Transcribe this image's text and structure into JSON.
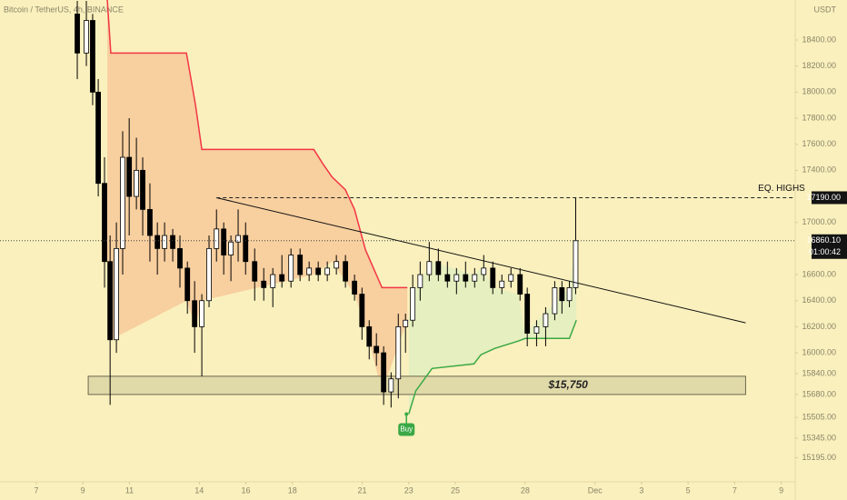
{
  "chart_data": {
    "type": "candlestick",
    "title": "Bitcoin / TetherUS, 4h, BINANCE",
    "currency": "USDT",
    "xlim": [
      5.44,
      39.6
    ],
    "xticks": [
      7,
      9,
      11,
      14,
      16,
      18,
      21,
      23,
      25,
      28,
      {
        "value": 31,
        "label": "Dec"
      },
      3.0,
      5.0,
      7.0,
      9.0
    ],
    "ylim": [
      15010,
      18707
    ],
    "yticks": [
      {
        "value": 15195,
        "label": "15195.00"
      },
      {
        "value": 15345,
        "label": "15345.00"
      },
      {
        "value": 15505,
        "label": "15505.00"
      },
      {
        "value": 15680,
        "label": "15680.00"
      },
      {
        "value": 15840,
        "label": "15840.00"
      },
      {
        "value": 16000,
        "label": "16000.00"
      },
      {
        "value": 16200,
        "label": "16200.00"
      },
      {
        "value": 16400,
        "label": "16400.00"
      },
      {
        "value": 16600,
        "label": "16600.00"
      },
      {
        "value": 17000,
        "label": "17000.00"
      },
      {
        "value": 17400,
        "label": "17400.00"
      },
      {
        "value": 17600,
        "label": "17600.00"
      },
      {
        "value": 17800,
        "label": "17800.00"
      },
      {
        "value": 18000,
        "label": "18000.00"
      },
      {
        "value": 18200,
        "label": "18200.00"
      },
      {
        "value": 18400,
        "label": "18400.00"
      }
    ],
    "up_color": "#ffffff",
    "down_color": "#000000",
    "x": [
      8.76,
      9.15,
      9.42,
      9.66,
      9.93,
      10.17,
      10.44,
      10.71,
      10.99,
      11.3,
      11.57,
      11.88,
      12.2,
      12.51,
      12.86,
      13.17,
      13.49,
      13.8,
      14.11,
      14.42,
      14.74,
      15.05,
      15.36,
      15.67,
      15.99,
      16.38,
      16.77,
      17.16,
      17.55,
      17.94,
      18.33,
      18.72,
      19.11,
      19.5,
      19.89,
      20.28,
      20.67,
      20.99,
      21.3,
      21.61,
      21.92,
      22.24,
      22.55,
      22.86,
      23.17,
      23.49,
      23.88,
      24.27,
      24.66,
      25.05,
      25.44,
      25.83,
      26.22,
      26.61,
      27.0,
      27.39,
      27.78,
      28.09,
      28.49,
      28.88,
      29.27,
      29.58,
      29.9,
      30.17
    ],
    "open": [
      18600,
      18300,
      18550,
      18000,
      17300,
      16700,
      16100,
      16800,
      17500,
      17200,
      17400,
      17100,
      16900,
      16800,
      16900,
      16800,
      16650,
      16400,
      16200,
      16400,
      16800,
      16950,
      16750,
      16850,
      16900,
      16700,
      16550,
      16500,
      16600,
      16550,
      16750,
      16600,
      16650,
      16600,
      16650,
      16700,
      16550,
      16450,
      16200,
      16050,
      16000,
      15700,
      15800,
      16200,
      16250,
      16500,
      16600,
      16700,
      16600,
      16550,
      16600,
      16550,
      16600,
      16650,
      16500,
      16550,
      16600,
      16450,
      16150,
      16200,
      16300,
      16500,
      16400,
      16500
    ],
    "high": [
      18700,
      18700,
      18600,
      18100,
      17500,
      16900,
      17000,
      17700,
      17800,
      17650,
      17500,
      17300,
      17000,
      17000,
      16950,
      16900,
      16700,
      16550,
      16450,
      16900,
      17100,
      17000,
      16900,
      17100,
      17000,
      16800,
      16650,
      16650,
      16750,
      16800,
      16800,
      16700,
      16700,
      16700,
      16750,
      16750,
      16600,
      16500,
      16250,
      16150,
      16050,
      15850,
      16300,
      16300,
      16600,
      16700,
      16850,
      16800,
      16700,
      16650,
      16700,
      16650,
      16750,
      16700,
      16600,
      16650,
      16650,
      16500,
      16250,
      16350,
      16550,
      16550,
      16550,
      17190
    ],
    "low": [
      18100,
      18200,
      17900,
      17200,
      16500,
      15600,
      16000,
      16600,
      16900,
      17100,
      16900,
      16700,
      16600,
      16700,
      16700,
      16500,
      16300,
      16000,
      15820,
      16350,
      16700,
      16600,
      16550,
      16700,
      16600,
      16400,
      16400,
      16350,
      16500,
      16500,
      16550,
      16550,
      16550,
      16550,
      16600,
      16500,
      16400,
      16100,
      15950,
      15900,
      15600,
      15580,
      15650,
      16000,
      16200,
      16400,
      16550,
      16550,
      16500,
      16450,
      16500,
      16500,
      16550,
      16450,
      16450,
      16500,
      16400,
      16050,
      16050,
      16050,
      16250,
      16300,
      16350,
      16450
    ],
    "close": [
      18300,
      18550,
      18000,
      17300,
      16700,
      16100,
      16800,
      17500,
      17200,
      17400,
      17100,
      16900,
      16800,
      16900,
      16800,
      16650,
      16400,
      16200,
      16400,
      16800,
      16950,
      16750,
      16850,
      16900,
      16700,
      16550,
      16500,
      16600,
      16550,
      16750,
      16600,
      16650,
      16600,
      16650,
      16700,
      16550,
      16450,
      16200,
      16050,
      16000,
      15700,
      15800,
      16200,
      16250,
      16500,
      16600,
      16700,
      16600,
      16550,
      16600,
      16550,
      16600,
      16650,
      16500,
      16550,
      16600,
      16450,
      16150,
      16200,
      16300,
      16500,
      16400,
      16500,
      16860.1
    ],
    "supertrend_upper": {
      "color": "#f23645",
      "fill": "#f7c99a",
      "x": [
        10.05,
        10.2,
        13.45,
        13.84,
        14.11,
        18.92,
        19.31,
        19.7,
        20.28,
        20.67,
        21.14,
        21.85,
        22.94
      ],
      "values": [
        18707,
        18300,
        18300,
        17900,
        17560,
        17560,
        17450,
        17350,
        17250,
        17100,
        16790,
        16500,
        16500
      ]
    },
    "supertrend_lower": {
      "color": "#3aa845",
      "fill": "#e2eec0",
      "x": [
        23.0,
        23.3,
        24.0,
        25.8,
        26.1,
        26.7,
        27.7,
        28.0,
        29.9,
        30.2
      ],
      "values": [
        15530,
        15707,
        15880,
        15915,
        15985,
        16034,
        16090,
        16110,
        16110,
        16250
      ]
    },
    "trendline": {
      "x": [
        14.74,
        37.47
      ],
      "values": [
        17190,
        16230
      ]
    },
    "eq_highs": {
      "value": 17190,
      "label": "17190.00",
      "text": "EQ. HIGHS",
      "x_start": 14.74
    },
    "last_price": {
      "value": 16860.1,
      "label": "16860.10",
      "countdown": "01:00:42"
    },
    "support_zone": {
      "x": [
        9.23,
        37.47
      ],
      "low": 15680,
      "high": 15820,
      "label": "$15,750"
    },
    "buy_signal": {
      "x": 22.9,
      "value": 15530,
      "label": "Buy"
    }
  }
}
